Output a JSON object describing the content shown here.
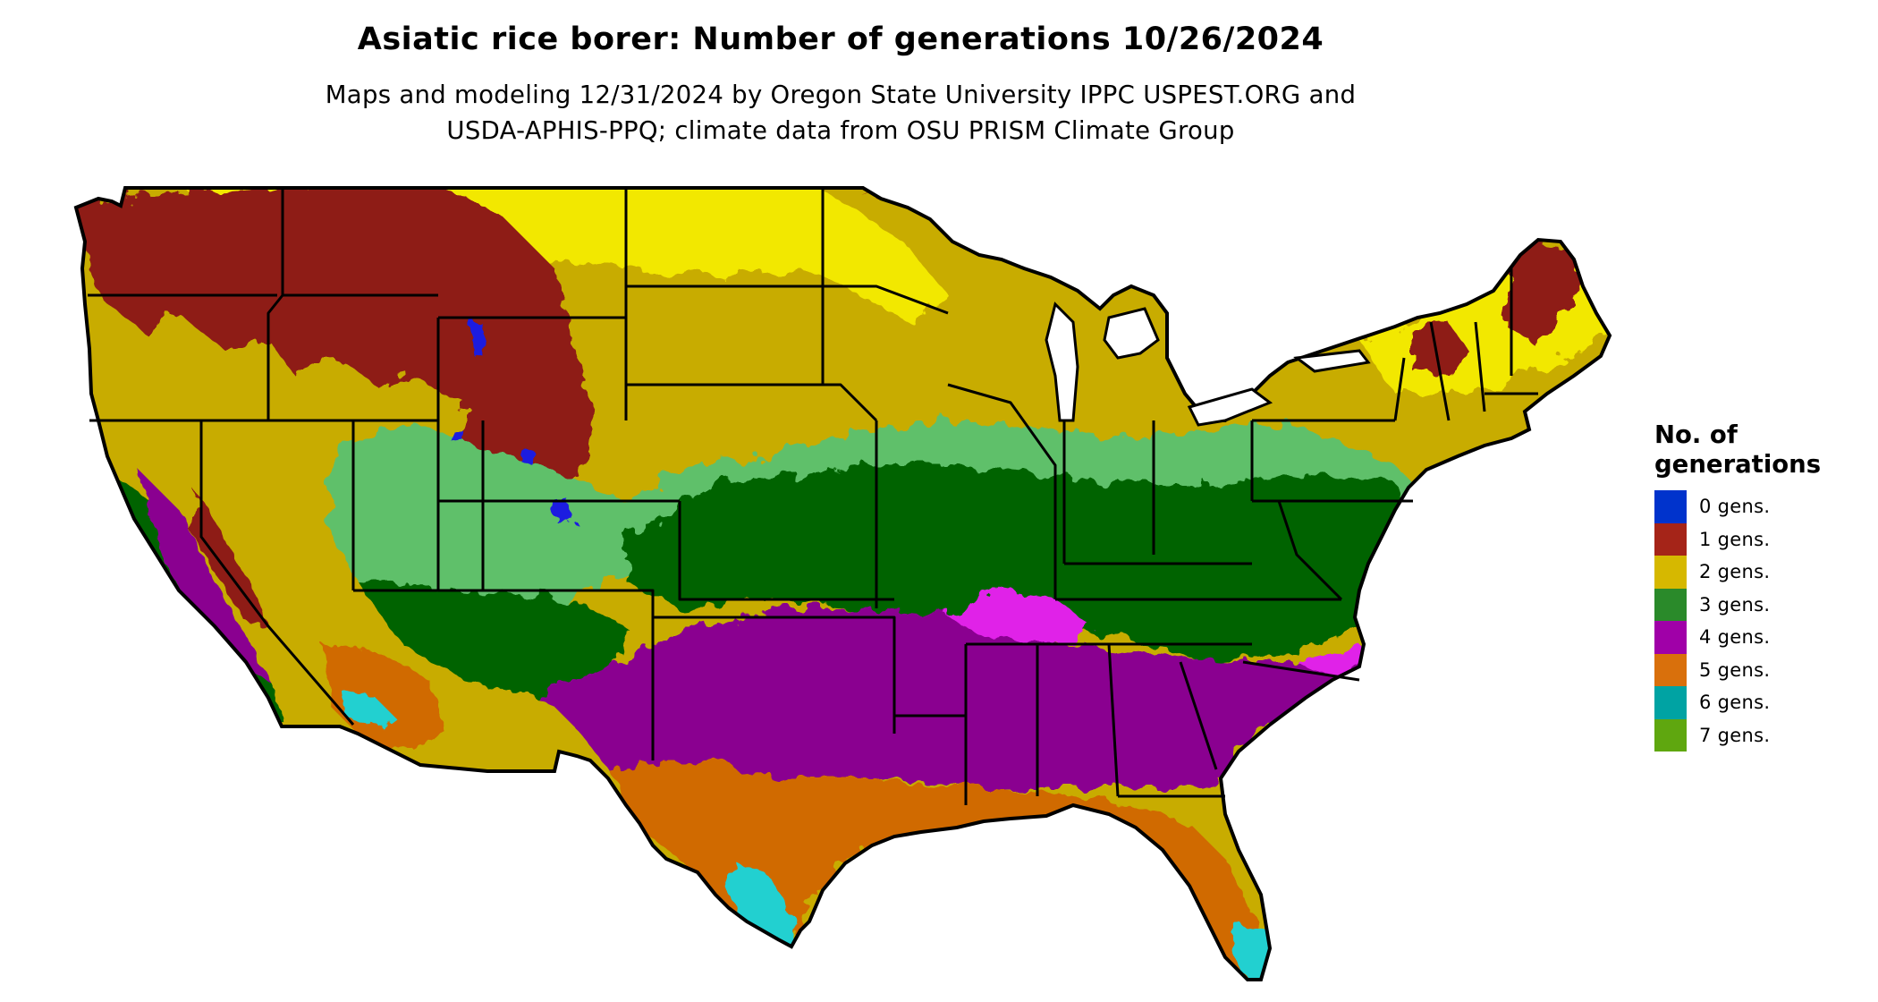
{
  "header": {
    "title": "Asiatic rice borer: Number of generations 10/26/2024",
    "subtitle_line1": "Maps and modeling 12/31/2024 by Oregon State University IPPC USPEST.ORG and",
    "subtitle_line2": "USDA-APHIS-PPQ; climate data from OSU PRISM Climate Group"
  },
  "legend": {
    "title_line1": "No. of",
    "title_line2": "generations",
    "items": [
      {
        "label": "0 gens.",
        "color": "#0033CC"
      },
      {
        "label": "1 gens.",
        "color": "#A52418"
      },
      {
        "label": "2 gens.",
        "color": "#D6B800"
      },
      {
        "label": "3 gens.",
        "color": "#2A8A2A"
      },
      {
        "label": "4 gens.",
        "color": "#A000A8"
      },
      {
        "label": "5 gens.",
        "color": "#D9700C"
      },
      {
        "label": "6 gens.",
        "color": "#00A3A3"
      },
      {
        "label": "7 gens.",
        "color": "#5FA70F"
      }
    ]
  },
  "map_palette": {
    "outline": "#000000",
    "yellow_bright": "#F2E800",
    "gold": "#C8AC00",
    "maroon": "#8E1B16",
    "dark_green": "#046404",
    "light_green": "#5FC06A",
    "purple": "#8A0090",
    "magenta": "#E020E8",
    "orange": "#D06A00",
    "cyan": "#20D0D0",
    "blue": "#1A1AE0"
  }
}
